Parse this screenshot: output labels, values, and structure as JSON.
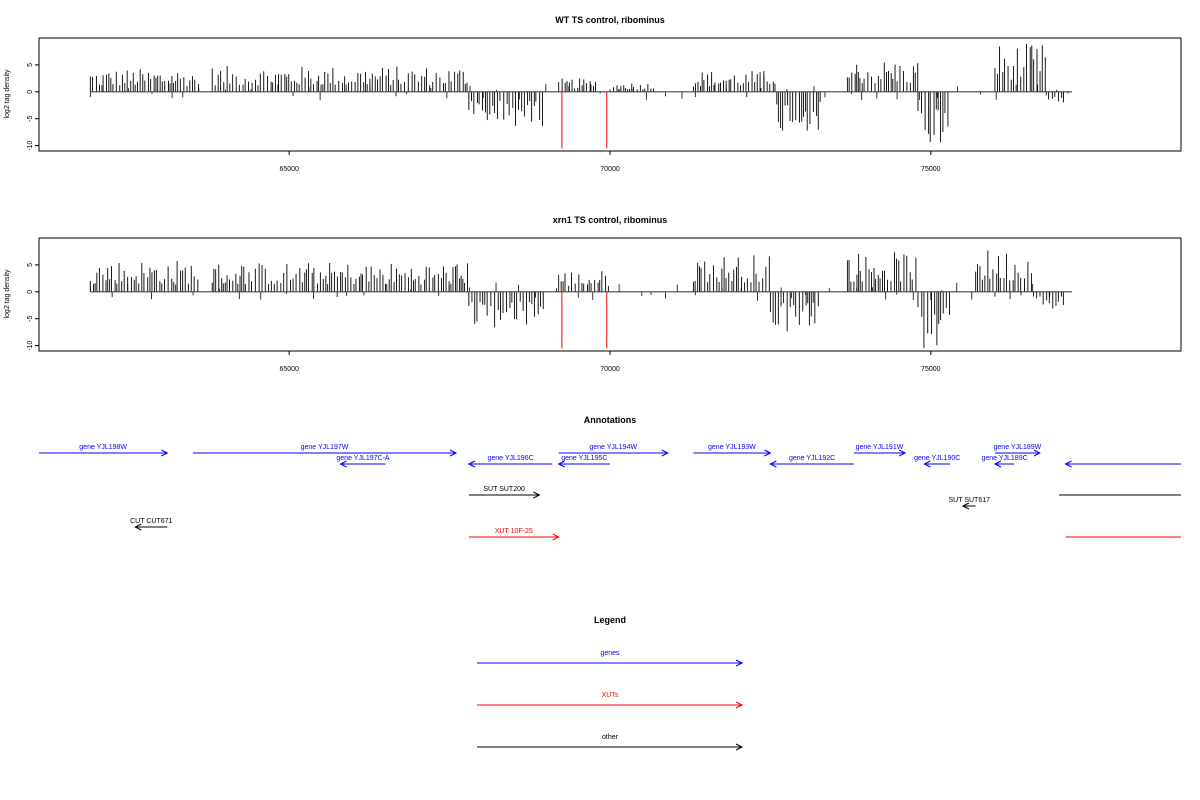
{
  "chart_data": [
    {
      "type": "bar",
      "title": "WT TS control, ribominus",
      "xlabel": "",
      "ylabel": "log2 tag density",
      "xlim": [
        61100,
        78900
      ],
      "ylim": [
        -11,
        10
      ],
      "x_ticks": [
        65000,
        70000,
        75000
      ],
      "x_tick_labels": [
        "65000",
        "70000",
        "75000"
      ],
      "y_ticks": [
        -10,
        -5,
        0,
        5
      ],
      "y_tick_labels": [
        "-10",
        "-5",
        "0",
        "5"
      ],
      "grid": false,
      "baseline": {
        "from": 61900,
        "to": 77200,
        "value": 0
      },
      "red_markers": [
        {
          "x": 69250,
          "y": -10.5
        },
        {
          "x": 69950,
          "y": -10.5
        }
      ],
      "segments": [
        {
          "start": 61900,
          "end": 63600,
          "sign": 1,
          "max": 4.3
        },
        {
          "start": 63800,
          "end": 67800,
          "sign": 1,
          "max": 4.8
        },
        {
          "start": 67800,
          "end": 69000,
          "sign": -1,
          "max": 6.5
        },
        {
          "start": 69200,
          "end": 69800,
          "sign": 1,
          "max": 2.5
        },
        {
          "start": 70000,
          "end": 70700,
          "sign": 1,
          "max": 1.8
        },
        {
          "start": 71300,
          "end": 72400,
          "sign": 1,
          "max": 4.0
        },
        {
          "start": 72400,
          "end": 72600,
          "sign": 1,
          "max": 5.0
        },
        {
          "start": 72600,
          "end": 73300,
          "sign": -1,
          "max": 7.5
        },
        {
          "start": 73700,
          "end": 74800,
          "sign": 1,
          "max": 6.0
        },
        {
          "start": 74800,
          "end": 75300,
          "sign": -1,
          "max": 10.5
        },
        {
          "start": 76000,
          "end": 76800,
          "sign": 1,
          "max": 9.0
        },
        {
          "start": 76800,
          "end": 77100,
          "sign": -1,
          "max": 2.0
        }
      ]
    },
    {
      "type": "bar",
      "title": "xrn1 TS control, ribominus",
      "xlabel": "",
      "ylabel": "log2 tag density",
      "xlim": [
        61100,
        78900
      ],
      "ylim": [
        -11,
        10
      ],
      "x_ticks": [
        65000,
        70000,
        75000
      ],
      "x_tick_labels": [
        "65000",
        "70000",
        "75000"
      ],
      "y_ticks": [
        -10,
        -5,
        0,
        5
      ],
      "y_tick_labels": [
        "-10",
        "-5",
        "0",
        "5"
      ],
      "grid": false,
      "baseline": {
        "from": 61900,
        "to": 77200,
        "value": 0
      },
      "red_markers": [
        {
          "x": 69250,
          "y": -10.5
        },
        {
          "x": 69950,
          "y": -10.5
        }
      ],
      "segments": [
        {
          "start": 61900,
          "end": 63600,
          "sign": 1,
          "max": 6.0
        },
        {
          "start": 63800,
          "end": 67800,
          "sign": 1,
          "max": 5.5
        },
        {
          "start": 67800,
          "end": 69000,
          "sign": -1,
          "max": 7.0
        },
        {
          "start": 69200,
          "end": 70000,
          "sign": 1,
          "max": 4.0
        },
        {
          "start": 71300,
          "end": 72500,
          "sign": 1,
          "max": 7.0
        },
        {
          "start": 72500,
          "end": 73300,
          "sign": -1,
          "max": 8.0
        },
        {
          "start": 73700,
          "end": 74800,
          "sign": 1,
          "max": 7.5
        },
        {
          "start": 74800,
          "end": 75300,
          "sign": -1,
          "max": 10.5
        },
        {
          "start": 75700,
          "end": 76600,
          "sign": 1,
          "max": 8.0
        },
        {
          "start": 76600,
          "end": 77100,
          "sign": -1,
          "max": 3.5
        }
      ]
    }
  ],
  "annotations": {
    "title": "Annotations",
    "colors": {
      "gene": "#0000ff",
      "sut": "#000000",
      "xut": "#ff0000",
      "cut": "#000000"
    },
    "features": [
      {
        "label": "gene YJL198W",
        "kind": "gene",
        "start": 61100,
        "end": 63100,
        "strand": "+",
        "row": 0
      },
      {
        "label": "gene YJL197W",
        "kind": "gene",
        "start": 63500,
        "end": 67600,
        "strand": "+",
        "row": 0
      },
      {
        "label": "gene YJL197C-A",
        "kind": "gene",
        "start": 65800,
        "end": 66500,
        "strand": "-",
        "row": 1
      },
      {
        "label": "gene YJL196C",
        "kind": "gene",
        "start": 67800,
        "end": 69100,
        "strand": "-",
        "row": 1
      },
      {
        "label": "gene YJL194W",
        "kind": "gene",
        "start": 69200,
        "end": 70900,
        "strand": "+",
        "row": 0
      },
      {
        "label": "gene YJL195C",
        "kind": "gene",
        "start": 69200,
        "end": 70000,
        "strand": "-",
        "row": 1
      },
      {
        "label": "gene YJL193W",
        "kind": "gene",
        "start": 71300,
        "end": 72500,
        "strand": "+",
        "row": 0
      },
      {
        "label": "gene YJL192C",
        "kind": "gene",
        "start": 72500,
        "end": 73800,
        "strand": "-",
        "row": 1
      },
      {
        "label": "gene YJL191W",
        "kind": "gene",
        "start": 73800,
        "end": 74600,
        "strand": "+",
        "row": 0
      },
      {
        "label": "gene YJL190C",
        "kind": "gene",
        "start": 74900,
        "end": 75300,
        "strand": "-",
        "row": 1
      },
      {
        "label": "gene YJL189W",
        "kind": "gene",
        "start": 76000,
        "end": 76700,
        "strand": "+",
        "row": 0
      },
      {
        "label": "gene YJL189C",
        "kind": "gene",
        "start": 76000,
        "end": 76300,
        "strand": "-",
        "row": 1
      },
      {
        "label": "",
        "kind": "gene",
        "start": 77100,
        "end": 78900,
        "strand": "-",
        "row": 1
      },
      {
        "label": "SUT SUT200",
        "kind": "sut",
        "start": 67800,
        "end": 68900,
        "strand": "+",
        "row": 2
      },
      {
        "label": "SUT SUT617",
        "kind": "sut",
        "start": 75500,
        "end": 75700,
        "strand": "-",
        "row": 3
      },
      {
        "label": "",
        "kind": "sut",
        "start": 77000,
        "end": 78900,
        "strand": "none",
        "row": 2
      },
      {
        "label": "CUT CUT671",
        "kind": "cut",
        "start": 62600,
        "end": 63100,
        "strand": "-",
        "row": 4
      },
      {
        "label": "XUT 10F-25",
        "kind": "xut",
        "start": 67800,
        "end": 69200,
        "strand": "+",
        "row": 5
      },
      {
        "label": "",
        "kind": "xut",
        "start": 77100,
        "end": 78900,
        "strand": "none",
        "row": 5
      }
    ]
  },
  "legend": {
    "title": "Legend",
    "items": [
      {
        "label": "genes",
        "color": "#0000ff"
      },
      {
        "label": "XUTs",
        "color": "#ff0000"
      },
      {
        "label": "other",
        "color": "#000000"
      }
    ]
  }
}
